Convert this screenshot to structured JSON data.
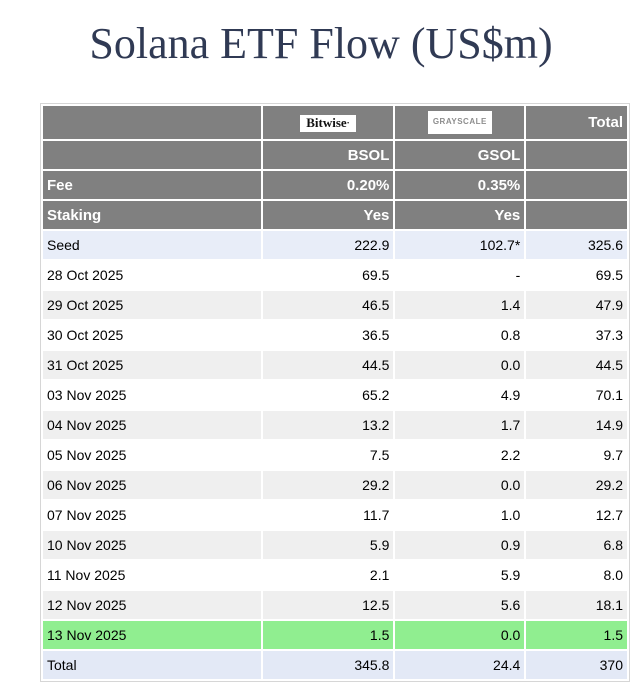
{
  "title": "Solana ETF Flow (US$m)",
  "colors": {
    "title_text": "#303a54",
    "header_bg": "#808080",
    "header_text": "#ffffff",
    "stripe_bg": "#efefef",
    "seed_total_bg": "#e8edf8",
    "highlight_green": "#90ee90",
    "table_border": "#d6d6d6"
  },
  "table": {
    "header": {
      "bitwise_logo": "Bitwise",
      "grayscale_logo": "GRAYSCALE",
      "total_label": "Total",
      "ticker_bitwise": "BSOL",
      "ticker_grayscale": "GSOL",
      "fee_label": "Fee",
      "fee_bitwise": "0.20%",
      "fee_grayscale": "0.35%",
      "staking_label": "Staking",
      "staking_bitwise": "Yes",
      "staking_grayscale": "Yes"
    },
    "rows": [
      {
        "label": "Seed",
        "bsol": "222.9",
        "gsol": "102.7*",
        "total": "325.6",
        "style": "seed"
      },
      {
        "label": "28 Oct 2025",
        "bsol": "69.5",
        "gsol": "-",
        "total": "69.5",
        "style": "white"
      },
      {
        "label": "29 Oct 2025",
        "bsol": "46.5",
        "gsol": "1.4",
        "total": "47.9",
        "style": "stripe"
      },
      {
        "label": "30 Oct 2025",
        "bsol": "36.5",
        "gsol": "0.8",
        "total": "37.3",
        "style": "white"
      },
      {
        "label": "31 Oct 2025",
        "bsol": "44.5",
        "gsol": "0.0",
        "total": "44.5",
        "style": "stripe"
      },
      {
        "label": "03 Nov 2025",
        "bsol": "65.2",
        "gsol": "4.9",
        "total": "70.1",
        "style": "white"
      },
      {
        "label": "04 Nov 2025",
        "bsol": "13.2",
        "gsol": "1.7",
        "total": "14.9",
        "style": "stripe"
      },
      {
        "label": "05 Nov 2025",
        "bsol": "7.5",
        "gsol": "2.2",
        "total": "9.7",
        "style": "white"
      },
      {
        "label": "06 Nov 2025",
        "bsol": "29.2",
        "gsol": "0.0",
        "total": "29.2",
        "style": "stripe"
      },
      {
        "label": "07 Nov 2025",
        "bsol": "11.7",
        "gsol": "1.0",
        "total": "12.7",
        "style": "white"
      },
      {
        "label": "10 Nov 2025",
        "bsol": "5.9",
        "gsol": "0.9",
        "total": "6.8",
        "style": "stripe"
      },
      {
        "label": "11 Nov 2025",
        "bsol": "2.1",
        "gsol": "5.9",
        "total": "8.0",
        "style": "white"
      },
      {
        "label": "12 Nov 2025",
        "bsol": "12.5",
        "gsol": "5.6",
        "total": "18.1",
        "style": "stripe"
      },
      {
        "label": "13 Nov 2025",
        "bsol": "1.5",
        "gsol": "0.0",
        "total": "1.5",
        "style": "green"
      },
      {
        "label": "Total",
        "bsol": "345.8",
        "gsol": "24.4",
        "total": "370",
        "style": "total"
      }
    ]
  },
  "chart_data": {
    "type": "table",
    "title": "Solana ETF Flow (US$m)",
    "columns": [
      "",
      "BSOL (Bitwise)",
      "GSOL (Grayscale)",
      "Total"
    ],
    "meta": {
      "fee": {
        "BSOL": "0.20%",
        "GSOL": "0.35%"
      },
      "staking": {
        "BSOL": "Yes",
        "GSOL": "Yes"
      }
    },
    "rows": [
      [
        "Seed",
        222.9,
        102.7,
        325.6
      ],
      [
        "28 Oct 2025",
        69.5,
        null,
        69.5
      ],
      [
        "29 Oct 2025",
        46.5,
        1.4,
        47.9
      ],
      [
        "30 Oct 2025",
        36.5,
        0.8,
        37.3
      ],
      [
        "31 Oct 2025",
        44.5,
        0.0,
        44.5
      ],
      [
        "03 Nov 2025",
        65.2,
        4.9,
        70.1
      ],
      [
        "04 Nov 2025",
        13.2,
        1.7,
        14.9
      ],
      [
        "05 Nov 2025",
        7.5,
        2.2,
        9.7
      ],
      [
        "06 Nov 2025",
        29.2,
        0.0,
        29.2
      ],
      [
        "07 Nov 2025",
        11.7,
        1.0,
        12.7
      ],
      [
        "10 Nov 2025",
        5.9,
        0.9,
        6.8
      ],
      [
        "11 Nov 2025",
        2.1,
        5.9,
        8.0
      ],
      [
        "12 Nov 2025",
        12.5,
        5.6,
        18.1
      ],
      [
        "13 Nov 2025",
        1.5,
        0.0,
        1.5
      ],
      [
        "Total",
        345.8,
        24.4,
        370
      ]
    ],
    "notes": [
      "102.7 seed value for GSOL is marked with an asterisk",
      "13 Nov 2025 row is highlighted green"
    ]
  }
}
